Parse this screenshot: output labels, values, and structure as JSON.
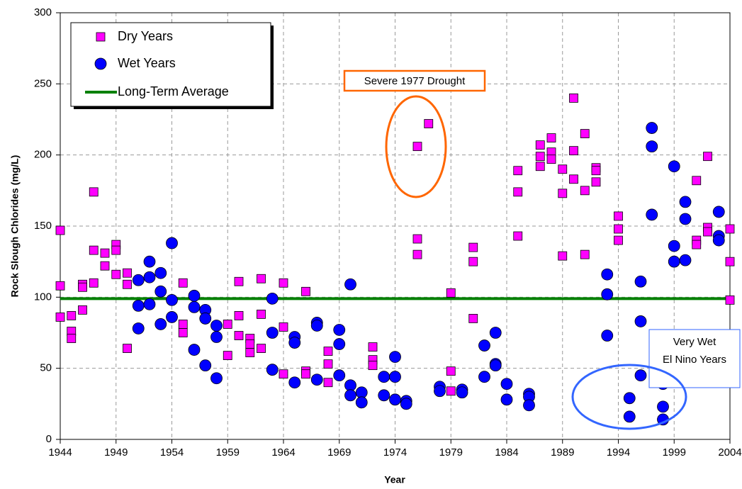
{
  "chart_data": {
    "type": "scatter",
    "y_label": "Rock Slough Chlorides (mg/L)",
    "x_label": "Year",
    "xlim": [
      1944,
      2004
    ],
    "xticks": [
      1944,
      1949,
      1954,
      1959,
      1964,
      1969,
      1974,
      1979,
      1984,
      1989,
      1994,
      1999,
      2004
    ],
    "ylim": [
      0,
      300
    ],
    "yticks": [
      0,
      50,
      100,
      150,
      200,
      250,
      300
    ],
    "grid": true,
    "legend": "upper left",
    "series": [
      {
        "name": "Dry Years",
        "color": "#ff00ff",
        "marker": "square",
        "x": [
          1944,
          1944,
          1944,
          1945,
          1945,
          1945,
          1946,
          1946,
          1946,
          1947,
          1947,
          1947,
          1948,
          1948,
          1949,
          1949,
          1949,
          1950,
          1950,
          1950,
          1955,
          1955,
          1955,
          1959,
          1959,
          1960,
          1960,
          1960,
          1961,
          1961,
          1961,
          1962,
          1962,
          1962,
          1964,
          1964,
          1964,
          1966,
          1966,
          1966,
          1968,
          1968,
          1968,
          1972,
          1972,
          1972,
          1976,
          1976,
          1976,
          1977,
          1979,
          1979,
          1979,
          1981,
          1981,
          1981,
          1985,
          1985,
          1985,
          1987,
          1987,
          1987,
          1988,
          1988,
          1988,
          1989,
          1989,
          1989,
          1990,
          1990,
          1990,
          1991,
          1991,
          1991,
          1992,
          1992,
          1992,
          1994,
          1994,
          1994,
          2001,
          2001,
          2001,
          2002,
          2002,
          2002,
          2004,
          2004,
          2004
        ],
        "values": [
          147,
          108,
          86,
          87,
          76,
          71,
          109,
          107,
          91,
          174,
          133,
          110,
          131,
          122,
          137,
          133,
          116,
          117,
          109,
          64,
          110,
          81,
          75,
          81,
          59,
          111,
          87,
          73,
          71,
          67,
          61,
          113,
          88,
          64,
          110,
          79,
          46,
          104,
          48,
          46,
          62,
          53,
          40,
          65,
          56,
          52,
          206,
          141,
          130,
          222,
          103,
          48,
          34,
          135,
          125,
          85,
          189,
          174,
          143,
          207,
          199,
          192,
          212,
          202,
          197,
          190,
          173,
          129,
          240,
          203,
          183,
          215,
          175,
          130,
          191,
          189,
          181,
          157,
          148,
          140,
          140,
          137,
          182,
          199,
          149,
          146,
          148,
          125,
          98
        ]
      },
      {
        "name": "Wet Years",
        "color": "#0000ff",
        "marker": "circle",
        "x": [
          1951,
          1951,
          1951,
          1952,
          1952,
          1952,
          1953,
          1953,
          1953,
          1954,
          1954,
          1954,
          1956,
          1956,
          1956,
          1957,
          1957,
          1957,
          1958,
          1958,
          1958,
          1963,
          1963,
          1963,
          1965,
          1965,
          1965,
          1967,
          1967,
          1967,
          1969,
          1969,
          1969,
          1970,
          1970,
          1970,
          1971,
          1971,
          1973,
          1973,
          1974,
          1974,
          1974,
          1975,
          1975,
          1978,
          1978,
          1980,
          1980,
          1982,
          1982,
          1983,
          1983,
          1983,
          1984,
          1984,
          1986,
          1986,
          1986,
          1993,
          1993,
          1993,
          1995,
          1995,
          1996,
          1996,
          1996,
          1997,
          1997,
          1997,
          1998,
          1998,
          1998,
          1999,
          1999,
          1999,
          2000,
          2000,
          2000,
          2003,
          2003,
          2003
        ],
        "values": [
          112,
          94,
          78,
          125,
          114,
          95,
          117,
          104,
          81,
          138,
          98,
          86,
          101,
          93,
          63,
          91,
          85,
          52,
          80,
          72,
          43,
          99,
          75,
          49,
          72,
          68,
          40,
          82,
          80,
          42,
          77,
          67,
          45,
          109,
          38,
          31,
          33,
          26,
          44,
          31,
          58,
          44,
          28,
          27,
          25,
          37,
          34,
          35,
          33,
          66,
          44,
          75,
          53,
          52,
          39,
          28,
          32,
          30,
          24,
          116,
          102,
          73,
          29,
          16,
          111,
          83,
          45,
          219,
          206,
          158,
          39,
          23,
          14,
          192,
          136,
          125,
          167,
          155,
          126,
          160,
          143,
          140
        ]
      }
    ],
    "reference_line": {
      "name": "Long-Term Average",
      "color": "#008000",
      "value": 99
    },
    "annotations": [
      {
        "text": [
          "Severe 1977 Drought"
        ],
        "color": "#ff6600"
      },
      {
        "text": [
          "Very Wet",
          "El Nino Years"
        ],
        "color": "#3366ff"
      }
    ]
  }
}
